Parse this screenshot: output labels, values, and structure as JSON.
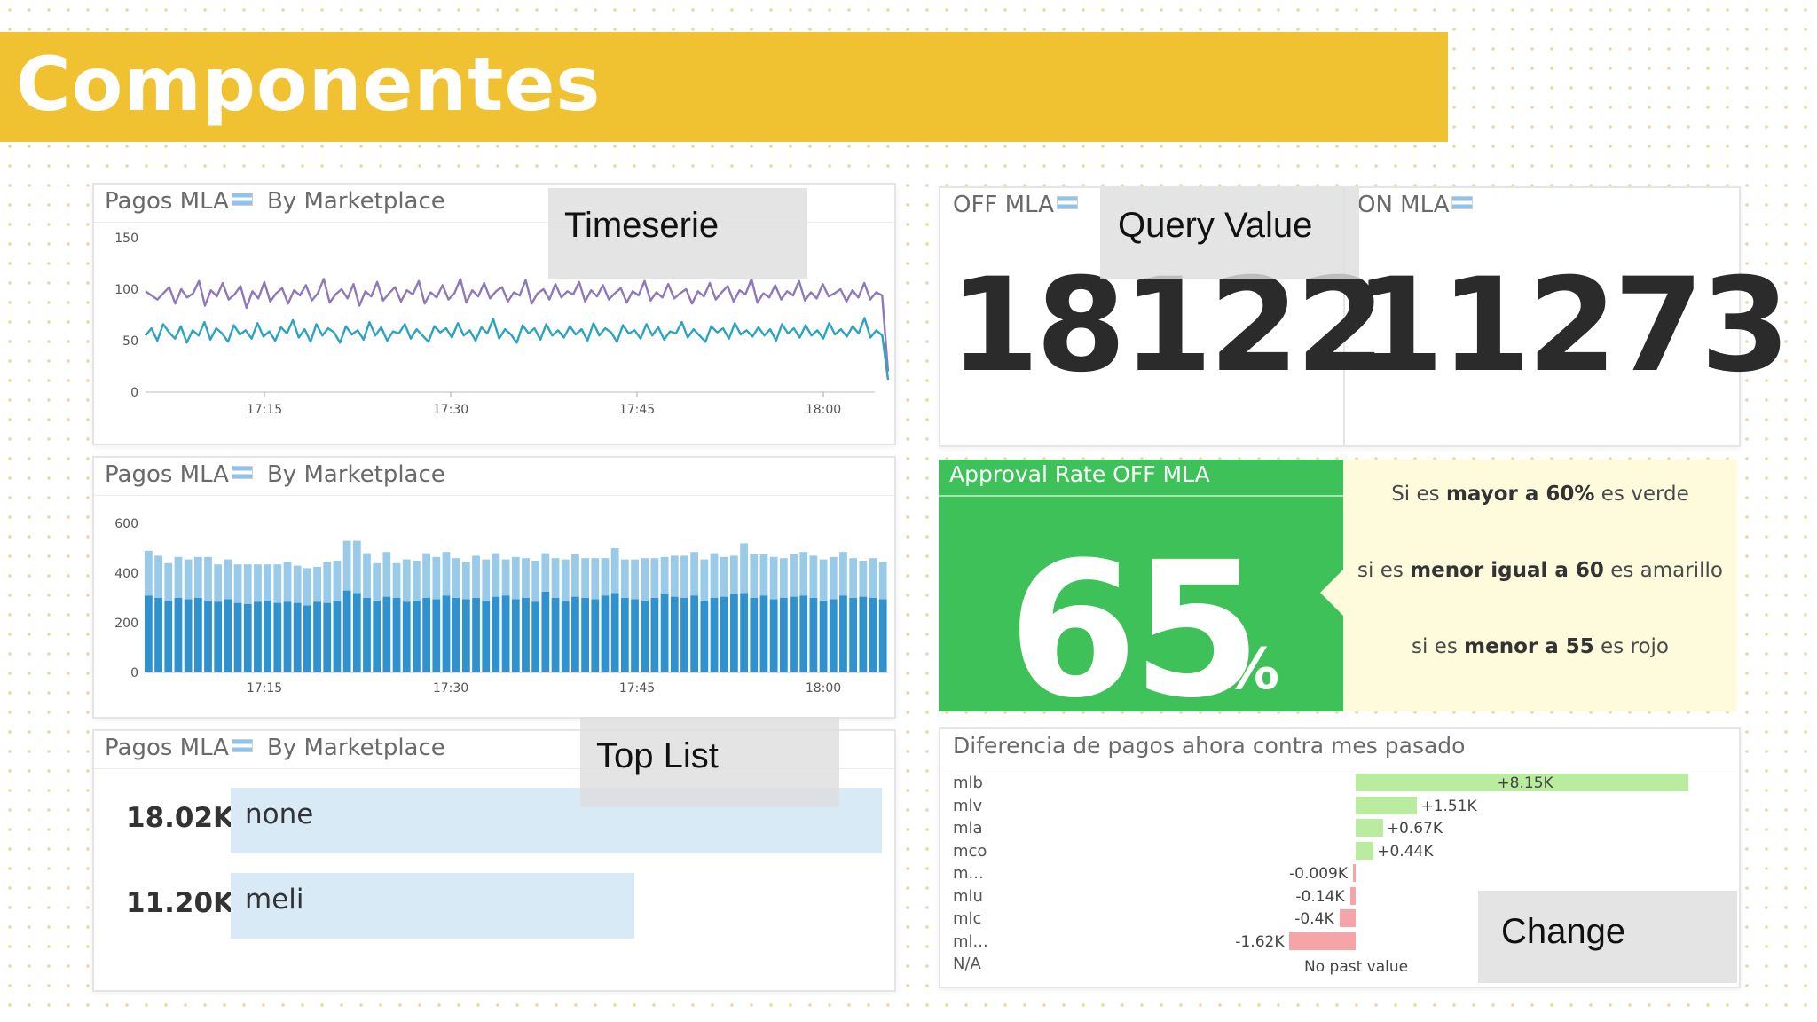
{
  "slide_title": "Componentes",
  "overlays": {
    "timeserie": "Timeserie",
    "query_value": "Query Value",
    "top_list": "Top List",
    "change": "Change"
  },
  "timeseries_panel": {
    "title": "Pagos MLA",
    "subtitle": "By Marketplace",
    "chart_data": {
      "type": "line",
      "x_ticks": [
        "17:15",
        "17:30",
        "17:45",
        "18:00"
      ],
      "y_ticks": [
        "0",
        "50",
        "100",
        "150"
      ],
      "ylim": [
        0,
        150
      ],
      "series": [
        {
          "color": "#8f78b8",
          "values": [
            98,
            94,
            90,
            96,
            102,
            86,
            100,
            92,
            96,
            108,
            84,
            99,
            93,
            106,
            90,
            95,
            103,
            82,
            98,
            91,
            107,
            88,
            96,
            101,
            86,
            99,
            94,
            104,
            89,
            96,
            110,
            87,
            95,
            100,
            91,
            105,
            84,
            98,
            93,
            107,
            89,
            96,
            102,
            88,
            99,
            95,
            108,
            86,
            97,
            92,
            104,
            90,
            96,
            110,
            87,
            99,
            93,
            106,
            91,
            98,
            102,
            88,
            97,
            94,
            109,
            86,
            96,
            100,
            90,
            105,
            92,
            98,
            95,
            107,
            88,
            99,
            93,
            104,
            90,
            96,
            101,
            87,
            98,
            94,
            108,
            89,
            97,
            92,
            105,
            91,
            96,
            100,
            86,
            98,
            93,
            106,
            90,
            97,
            103,
            88,
            99,
            95,
            110,
            87,
            96,
            92,
            104,
            90,
            98,
            94,
            108,
            89,
            97,
            91,
            105,
            93,
            96,
            100,
            88,
            99,
            92,
            106,
            90,
            97,
            94,
            20
          ]
        },
        {
          "color": "#2ba3c1",
          "values": [
            55,
            62,
            50,
            66,
            58,
            52,
            64,
            48,
            60,
            55,
            68,
            51,
            62,
            57,
            49,
            65,
            56,
            60,
            52,
            67,
            54,
            59,
            50,
            63,
            57,
            70,
            53,
            61,
            49,
            66,
            55,
            62,
            58,
            48,
            64,
            56,
            60,
            51,
            68,
            55,
            63,
            50,
            59,
            57,
            66,
            52,
            61,
            55,
            49,
            64,
            58,
            62,
            53,
            67,
            55,
            60,
            50,
            63,
            57,
            71,
            52,
            61,
            56,
            48,
            65,
            57,
            62,
            51,
            66,
            55,
            60,
            53,
            64,
            56,
            61,
            50,
            67,
            55,
            62,
            58,
            49,
            65,
            57,
            60,
            52,
            66,
            55,
            63,
            51,
            59,
            57,
            68,
            53,
            61,
            55,
            49,
            64,
            58,
            62,
            52,
            67,
            56,
            60,
            54,
            63,
            55,
            61,
            50,
            66,
            57,
            62,
            53,
            65,
            55,
            60,
            52,
            67,
            56,
            61,
            54,
            64,
            57,
            72,
            53,
            60,
            55,
            12
          ]
        }
      ]
    }
  },
  "bar_panel": {
    "title": "Pagos MLA",
    "subtitle": "By Marketplace",
    "chart_data": {
      "type": "bar",
      "stacked": true,
      "x_ticks": [
        "17:15",
        "17:30",
        "17:45",
        "18:00"
      ],
      "y_ticks": [
        "0",
        "200",
        "400",
        "600"
      ],
      "ylim": [
        0,
        650
      ],
      "series": [
        {
          "color": "#2f92cf",
          "values": [
            310,
            300,
            290,
            300,
            295,
            300,
            290,
            285,
            295,
            280,
            275,
            285,
            290,
            280,
            285,
            280,
            270,
            285,
            280,
            290,
            330,
            320,
            300,
            290,
            305,
            300,
            285,
            290,
            300,
            295,
            310,
            300,
            295,
            300,
            290,
            305,
            310,
            295,
            300,
            285,
            325,
            300,
            290,
            305,
            300,
            295,
            310,
            320,
            300,
            295,
            290,
            300,
            315,
            305,
            300,
            310,
            290,
            300,
            305,
            315,
            320,
            300,
            310,
            295,
            300,
            305,
            310,
            300,
            290,
            295,
            310,
            300,
            305,
            300,
            295
          ]
        },
        {
          "color": "#99cbe8",
          "values": [
            180,
            170,
            150,
            165,
            160,
            165,
            175,
            150,
            160,
            155,
            160,
            150,
            145,
            155,
            160,
            150,
            150,
            140,
            165,
            160,
            200,
            210,
            180,
            150,
            180,
            140,
            170,
            160,
            180,
            170,
            175,
            160,
            150,
            170,
            165,
            175,
            145,
            170,
            160,
            165,
            155,
            160,
            165,
            170,
            160,
            165,
            150,
            180,
            155,
            160,
            170,
            160,
            150,
            165,
            170,
            175,
            165,
            180,
            160,
            155,
            200,
            175,
            165,
            170,
            160,
            170,
            175,
            170,
            165,
            170,
            175,
            160,
            145,
            160,
            150
          ]
        }
      ]
    }
  },
  "toplist_panel": {
    "title": "Pagos MLA",
    "subtitle": "By Marketplace",
    "rows": [
      {
        "value": "18.02K",
        "label": "none",
        "fraction": 1.0
      },
      {
        "value": "11.20K",
        "label": "meli",
        "fraction": 0.62
      }
    ]
  },
  "query_values": [
    {
      "title": "OFF MLA",
      "value": "18122"
    },
    {
      "title": "ON MLA",
      "value": "11273"
    }
  ],
  "approval": {
    "title": "Approval Rate OFF MLA",
    "value": "65",
    "unit": "%",
    "color": "#3ec159",
    "notes": [
      {
        "pre": "Si es ",
        "bold": "mayor a 60%",
        "post": " es verde"
      },
      {
        "pre": "si es ",
        "bold": "menor igual a 60",
        "post": " es amarillo"
      },
      {
        "pre": "si es ",
        "bold": "menor a 55",
        "post": " es rojo"
      }
    ]
  },
  "change_panel": {
    "title": "Diferencia de pagos ahora contra mes pasado",
    "chart_data": {
      "type": "bar",
      "orientation": "horizontal",
      "rows": [
        {
          "label": "mlb",
          "value": 8.15,
          "text": "+8.15K"
        },
        {
          "label": "mlv",
          "value": 1.51,
          "text": "+1.51K"
        },
        {
          "label": "mla",
          "value": 0.67,
          "text": "+0.67K"
        },
        {
          "label": "mco",
          "value": 0.44,
          "text": "+0.44K"
        },
        {
          "label": "m...",
          "value": -0.009,
          "text": "-0.009K"
        },
        {
          "label": "mlu",
          "value": -0.14,
          "text": "-0.14K"
        },
        {
          "label": "mlc",
          "value": -0.4,
          "text": "-0.4K"
        },
        {
          "label": "ml...",
          "value": -1.62,
          "text": "-1.62K"
        },
        {
          "label": "N/A",
          "value": null,
          "text": "No past value"
        }
      ]
    }
  }
}
